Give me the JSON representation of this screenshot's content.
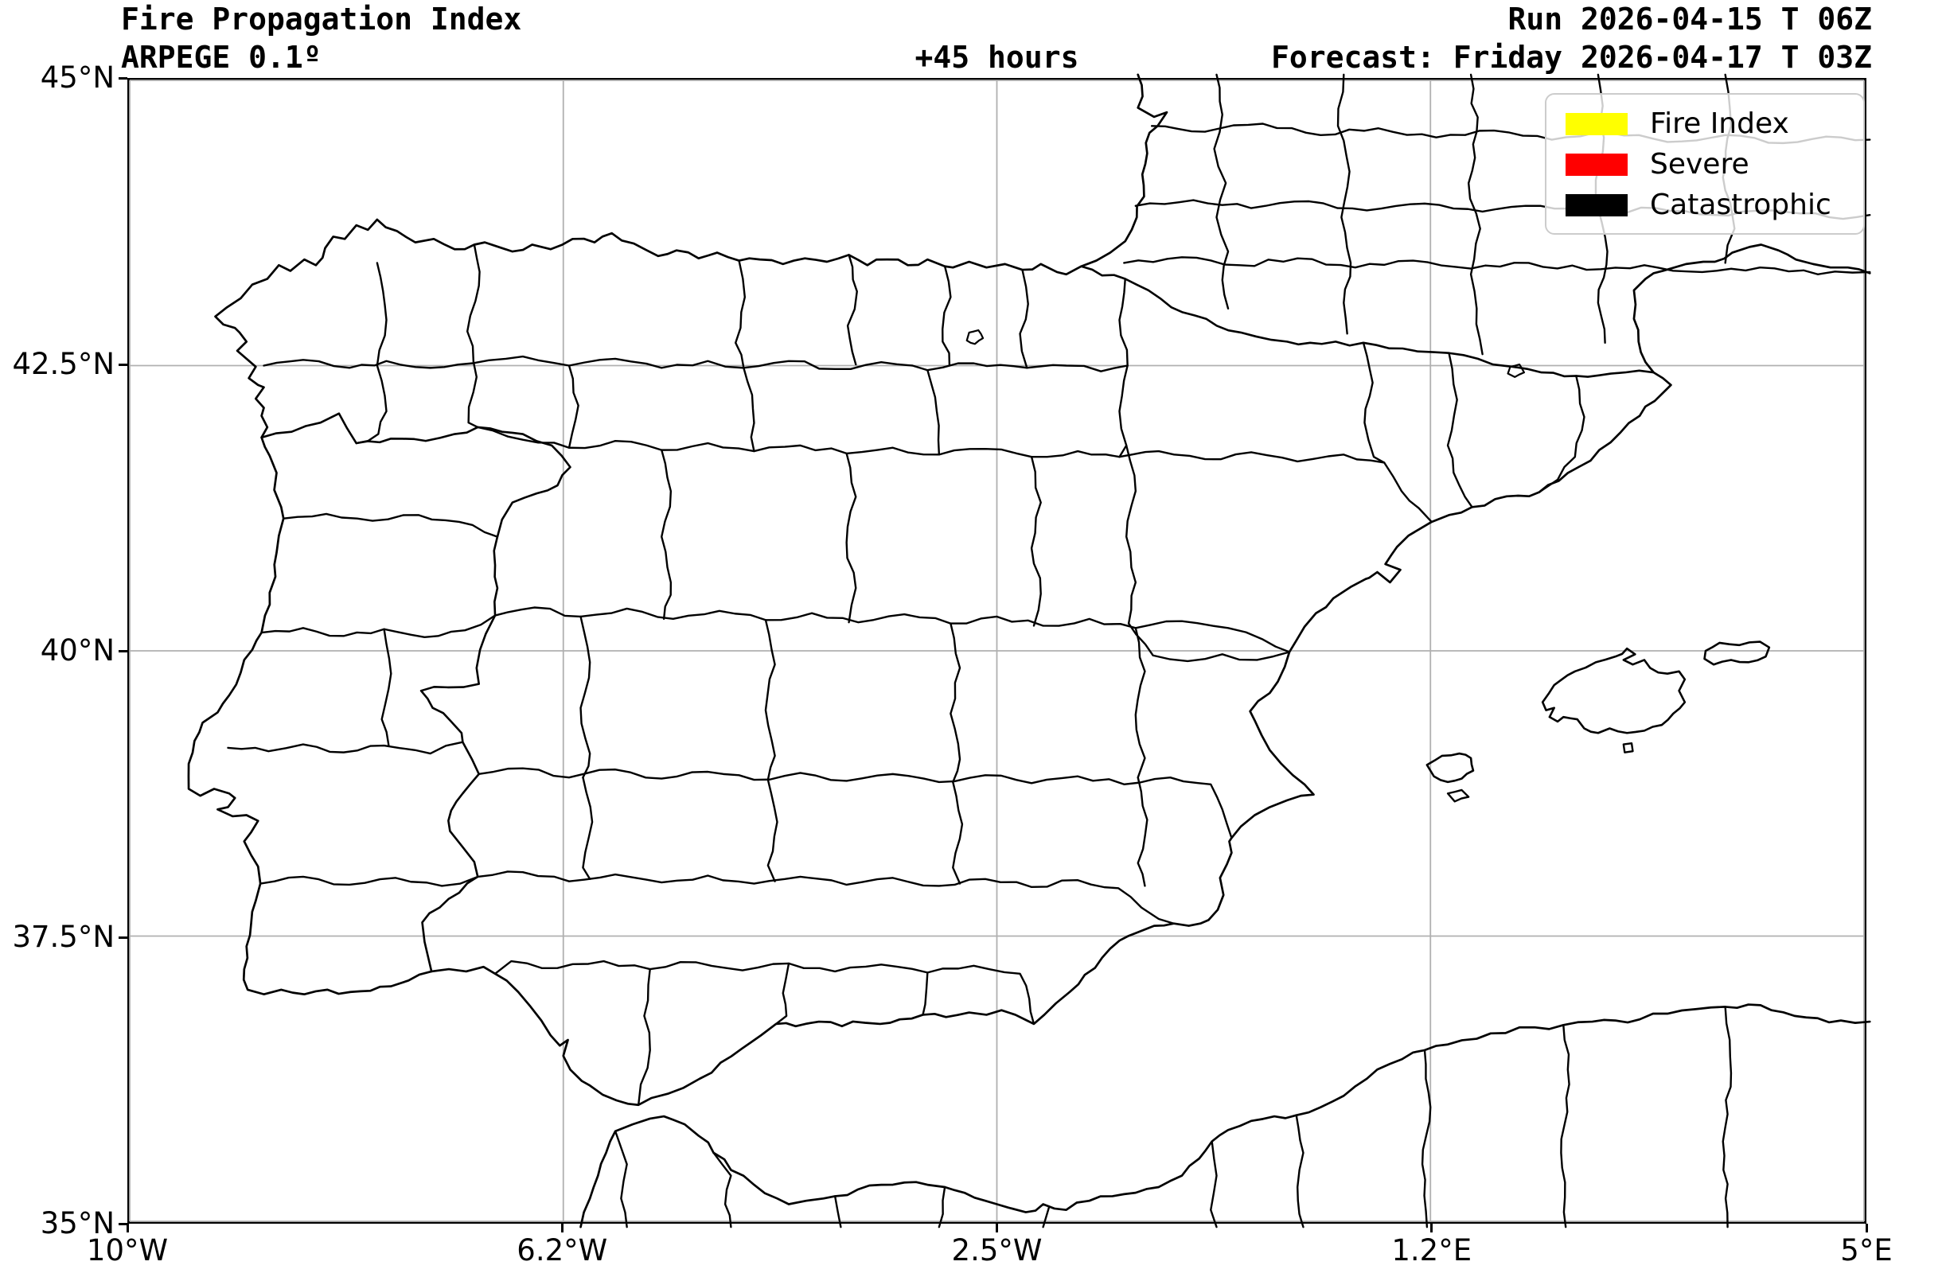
{
  "header": {
    "title": "Fire Propagation Index",
    "subtitle": "ARPEGE 0.1º",
    "lead_time": "+45 hours",
    "run_line": "Run 2026-04-15 T 06Z",
    "forecast_line": "Forecast: Friday 2026-04-17 T 03Z"
  },
  "legend": {
    "items": [
      {
        "label": "Fire Index",
        "color": "#ffff00"
      },
      {
        "label": "Severe",
        "color": "#ff0000"
      },
      {
        "label": "Catastrophic",
        "color": "#000000"
      }
    ]
  },
  "axes": {
    "x": {
      "range": [
        -10,
        5
      ],
      "ticks": [
        {
          "label": "10°W",
          "value": -10
        },
        {
          "label": "6.2°W",
          "value": -6.25
        },
        {
          "label": "2.5°W",
          "value": -2.5
        },
        {
          "label": "1.2°E",
          "value": 1.25
        },
        {
          "label": "5°E",
          "value": 5
        }
      ]
    },
    "y": {
      "range": [
        35,
        45
      ],
      "ticks": [
        {
          "label": "45°N",
          "value": 45
        },
        {
          "label": "42.5°N",
          "value": 42.5
        },
        {
          "label": "40°N",
          "value": 40
        },
        {
          "label": "37.5°N",
          "value": 37.5
        },
        {
          "label": "35°N",
          "value": 35
        }
      ]
    }
  },
  "colors": {
    "grid": "#b0b0b0",
    "map_outline": "#000000",
    "frame": "#000000",
    "legend_border": "#cccccc"
  }
}
